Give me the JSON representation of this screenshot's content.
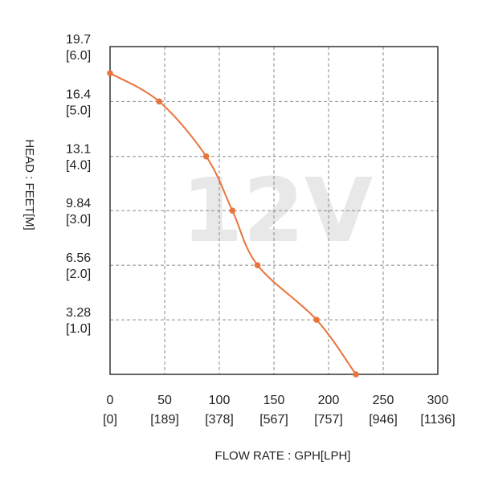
{
  "chart_data": {
    "type": "line",
    "title": "",
    "watermark": "12V",
    "xlabel": "FLOW RATE : GPH[LPH]",
    "ylabel": "HEAD : FEET[M]",
    "xlim": [
      0,
      300
    ],
    "ylim": [
      0,
      19.7
    ],
    "x_ticks": [
      {
        "value": 0,
        "label": "0",
        "sub": "[0]"
      },
      {
        "value": 50,
        "label": "50",
        "sub": "[189]"
      },
      {
        "value": 100,
        "label": "100",
        "sub": "[378]"
      },
      {
        "value": 150,
        "label": "150",
        "sub": "[567]"
      },
      {
        "value": 200,
        "label": "200",
        "sub": "[757]"
      },
      {
        "value": 250,
        "label": "250",
        "sub": "[946]"
      },
      {
        "value": 300,
        "label": "300",
        "sub": "[1136]"
      }
    ],
    "y_ticks": [
      {
        "value": 19.7,
        "label": "19.7",
        "sub": "[6.0]"
      },
      {
        "value": 16.4,
        "label": "16.4",
        "sub": "[5.0]"
      },
      {
        "value": 13.1,
        "label": "13.1",
        "sub": "[4.0]"
      },
      {
        "value": 9.84,
        "label": "9.84",
        "sub": "[3.0]"
      },
      {
        "value": 6.56,
        "label": "6.56",
        "sub": "[2.0]"
      },
      {
        "value": 3.28,
        "label": "3.28",
        "sub": "[1.0]"
      }
    ],
    "grid": true,
    "series": [
      {
        "name": "12V",
        "color": "#e8743b",
        "points": [
          {
            "x": 0,
            "y": 18.1
          },
          {
            "x": 45,
            "y": 16.4
          },
          {
            "x": 88,
            "y": 13.1
          },
          {
            "x": 112,
            "y": 9.84
          },
          {
            "x": 135,
            "y": 6.56
          },
          {
            "x": 189,
            "y": 3.28
          },
          {
            "x": 225,
            "y": 0
          }
        ]
      }
    ]
  }
}
